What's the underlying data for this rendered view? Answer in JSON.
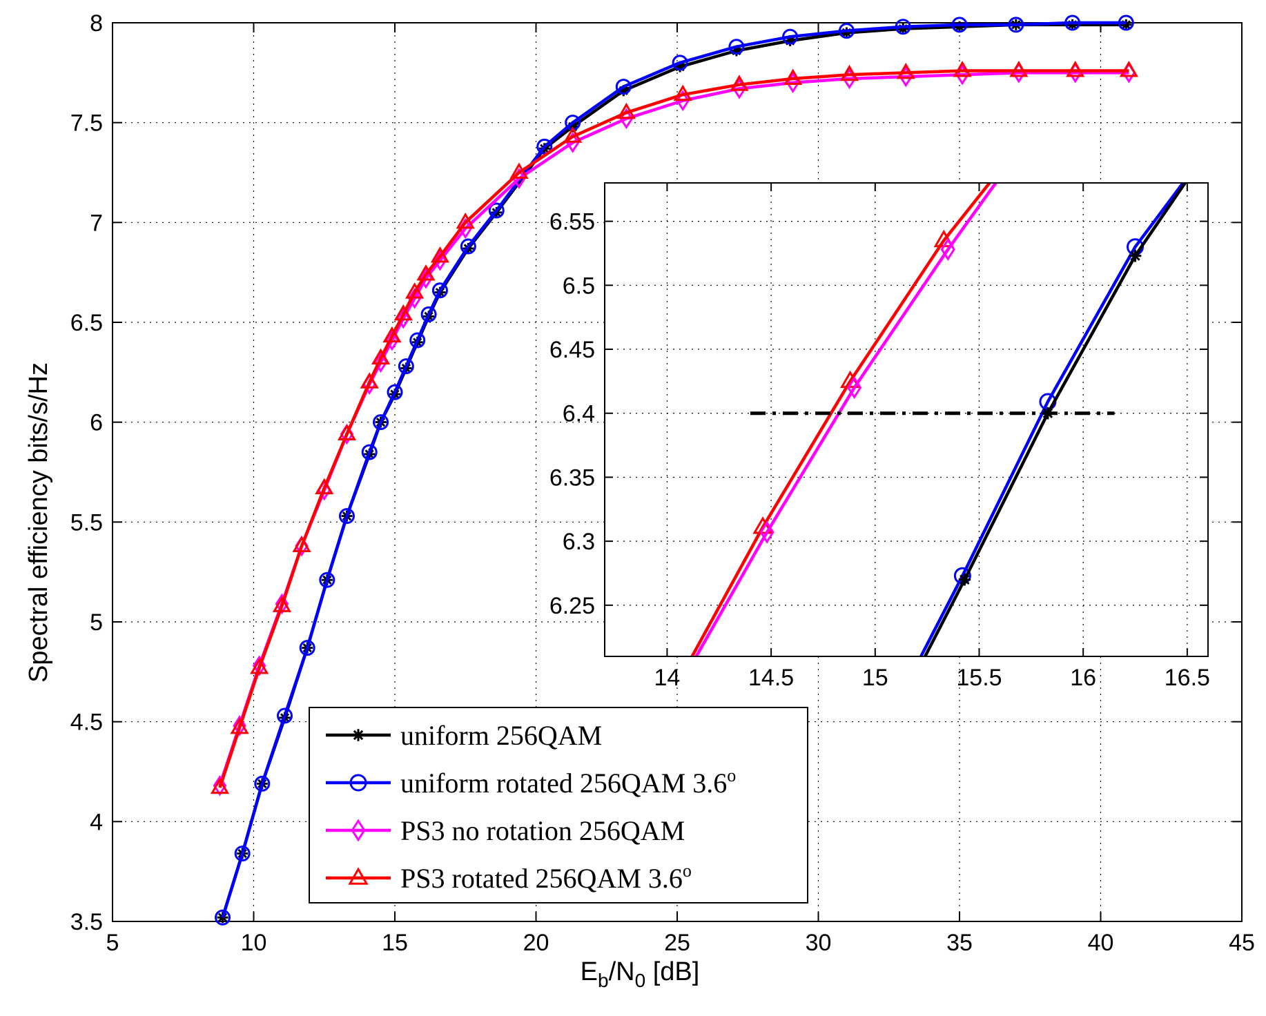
{
  "chart_data": {
    "type": "line",
    "xlabel": {
      "base": "E",
      "sub1": "b",
      "mid": "/N",
      "sub2": "0",
      "rest": " [dB]"
    },
    "ylabel": "Spectral efficiency   bits/s/Hz",
    "xlim": [
      5,
      45
    ],
    "ylim": [
      3.5,
      8
    ],
    "xticks": [
      5,
      10,
      15,
      20,
      25,
      30,
      35,
      40,
      45
    ],
    "yticks": [
      3.5,
      4,
      4.5,
      5,
      5.5,
      6,
      6.5,
      7,
      7.5,
      8
    ],
    "ytick_labels": [
      "3.5",
      "4",
      "4.5",
      "5",
      "5.5",
      "6",
      "6.5",
      "7",
      "7.5",
      "8"
    ],
    "grid": true,
    "series": [
      {
        "name": "uniform 256QAM",
        "color": "#000000",
        "marker": "star",
        "x": [
          8.9,
          9.6,
          10.3,
          11.1,
          11.9,
          12.6,
          13.3,
          14.1,
          14.5,
          15.0,
          15.4,
          15.8,
          16.2,
          16.6,
          17.6,
          18.6,
          20.3,
          21.3,
          23.1,
          25.1,
          27.1,
          29.0,
          31.0,
          33.0,
          35.0,
          37.0,
          39.0,
          40.9
        ],
        "y": [
          3.52,
          3.84,
          4.19,
          4.52,
          4.87,
          5.21,
          5.53,
          5.84,
          6.0,
          6.14,
          6.27,
          6.4,
          6.53,
          6.65,
          6.87,
          7.05,
          7.37,
          7.48,
          7.66,
          7.78,
          7.86,
          7.91,
          7.95,
          7.97,
          7.98,
          7.99,
          7.99,
          7.99
        ]
      },
      {
        "name": "uniform rotated 256QAM 3.6",
        "superscript": "o",
        "color": "#0000ff",
        "marker": "circle",
        "x": [
          8.9,
          9.6,
          10.3,
          11.1,
          11.9,
          12.6,
          13.3,
          14.1,
          14.5,
          15.0,
          15.4,
          15.8,
          16.2,
          16.6,
          17.6,
          18.6,
          20.3,
          21.3,
          23.1,
          25.1,
          27.1,
          29.0,
          31.0,
          33.0,
          35.0,
          37.0,
          39.0,
          40.9
        ],
        "y": [
          3.52,
          3.84,
          4.19,
          4.53,
          4.87,
          5.21,
          5.53,
          5.85,
          6.0,
          6.15,
          6.28,
          6.41,
          6.54,
          6.66,
          6.88,
          7.06,
          7.38,
          7.5,
          7.68,
          7.8,
          7.88,
          7.93,
          7.96,
          7.98,
          7.99,
          7.99,
          8.0,
          8.0
        ]
      },
      {
        "name": "PS3 no rotation 256QAM",
        "color": "#ff00ff",
        "marker": "diamond",
        "x": [
          8.8,
          9.5,
          10.2,
          11.0,
          11.7,
          12.5,
          13.3,
          14.1,
          14.5,
          14.9,
          15.3,
          15.7,
          16.1,
          16.6,
          17.5,
          19.4,
          21.3,
          23.2,
          25.2,
          27.2,
          29.1,
          31.1,
          33.1,
          35.1,
          37.1,
          39.1,
          41.0
        ],
        "y": [
          4.18,
          4.48,
          4.78,
          5.09,
          5.38,
          5.66,
          5.94,
          6.19,
          6.3,
          6.41,
          6.52,
          6.62,
          6.72,
          6.81,
          6.97,
          7.22,
          7.4,
          7.52,
          7.61,
          7.67,
          7.7,
          7.72,
          7.73,
          7.74,
          7.75,
          7.75,
          7.75
        ]
      },
      {
        "name": "PS3 rotated 256QAM 3.6",
        "superscript": "o",
        "color": "#ff0000",
        "marker": "triangle",
        "x": [
          8.8,
          9.5,
          10.2,
          11.0,
          11.7,
          12.5,
          13.3,
          14.1,
          14.5,
          14.9,
          15.3,
          15.7,
          16.1,
          16.6,
          17.5,
          19.4,
          21.3,
          23.2,
          25.2,
          27.2,
          29.1,
          31.1,
          33.1,
          35.1,
          37.1,
          39.1,
          41.0
        ],
        "y": [
          4.17,
          4.47,
          4.77,
          5.08,
          5.38,
          5.67,
          5.94,
          6.2,
          6.32,
          6.43,
          6.54,
          6.65,
          6.74,
          6.83,
          7.0,
          7.25,
          7.43,
          7.55,
          7.64,
          7.69,
          7.72,
          7.74,
          7.75,
          7.76,
          7.76,
          7.76,
          7.76
        ]
      }
    ],
    "inset": {
      "xlim": [
        13.7,
        16.6
      ],
      "ylim": [
        6.21,
        6.58
      ],
      "xticks": [
        14,
        14.5,
        15,
        15.5,
        16,
        16.5
      ],
      "xtick_labels": [
        "14",
        "14.5",
        "15",
        "15.5",
        "16",
        "16.5"
      ],
      "yticks": [
        6.25,
        6.3,
        6.35,
        6.4,
        6.45,
        6.5,
        6.55
      ],
      "ytick_labels": [
        "6.25",
        "6.3",
        "6.35",
        "6.4",
        "6.45",
        "6.5",
        "6.55"
      ],
      "grid": true,
      "series": [
        {
          "name": "PS3 rotated",
          "color": "#ff0000",
          "marker": "triangle",
          "x": [
            14.12,
            14.46,
            14.88,
            15.33,
            15.55
          ],
          "y": [
            6.21,
            6.311,
            6.425,
            6.535,
            6.58
          ],
          "mx": [
            14.46,
            14.88,
            15.33
          ],
          "my": [
            6.311,
            6.425,
            6.535
          ]
        },
        {
          "name": "PS3 no rotation",
          "color": "#ff00ff",
          "marker": "diamond",
          "x": [
            14.14,
            14.48,
            14.9,
            15.35,
            15.58
          ],
          "y": [
            6.21,
            6.307,
            6.42,
            6.528,
            6.58
          ],
          "mx": [
            14.48,
            14.9,
            15.35
          ],
          "my": [
            6.307,
            6.42,
            6.528
          ]
        },
        {
          "name": "uniform rotated",
          "color": "#0000ff",
          "marker": "circle",
          "x": [
            15.22,
            15.42,
            15.83,
            16.25,
            16.48
          ],
          "y": [
            6.21,
            6.273,
            6.409,
            6.53,
            6.58
          ],
          "mx": [
            15.42,
            15.83,
            16.25
          ],
          "my": [
            6.273,
            6.409,
            6.53
          ]
        },
        {
          "name": "uniform",
          "color": "#000000",
          "marker": "star",
          "x": [
            15.24,
            15.43,
            15.83,
            16.25,
            16.49
          ],
          "y": [
            6.21,
            6.27,
            6.4,
            6.523,
            6.58
          ],
          "mx": [
            15.43,
            15.83,
            16.25
          ],
          "my": [
            6.27,
            6.4,
            6.523
          ]
        }
      ],
      "reference_line": {
        "y": 6.4,
        "x_start": 14.4,
        "x_end": 16.15,
        "color": "#000000",
        "style": "dash-dot"
      }
    }
  }
}
